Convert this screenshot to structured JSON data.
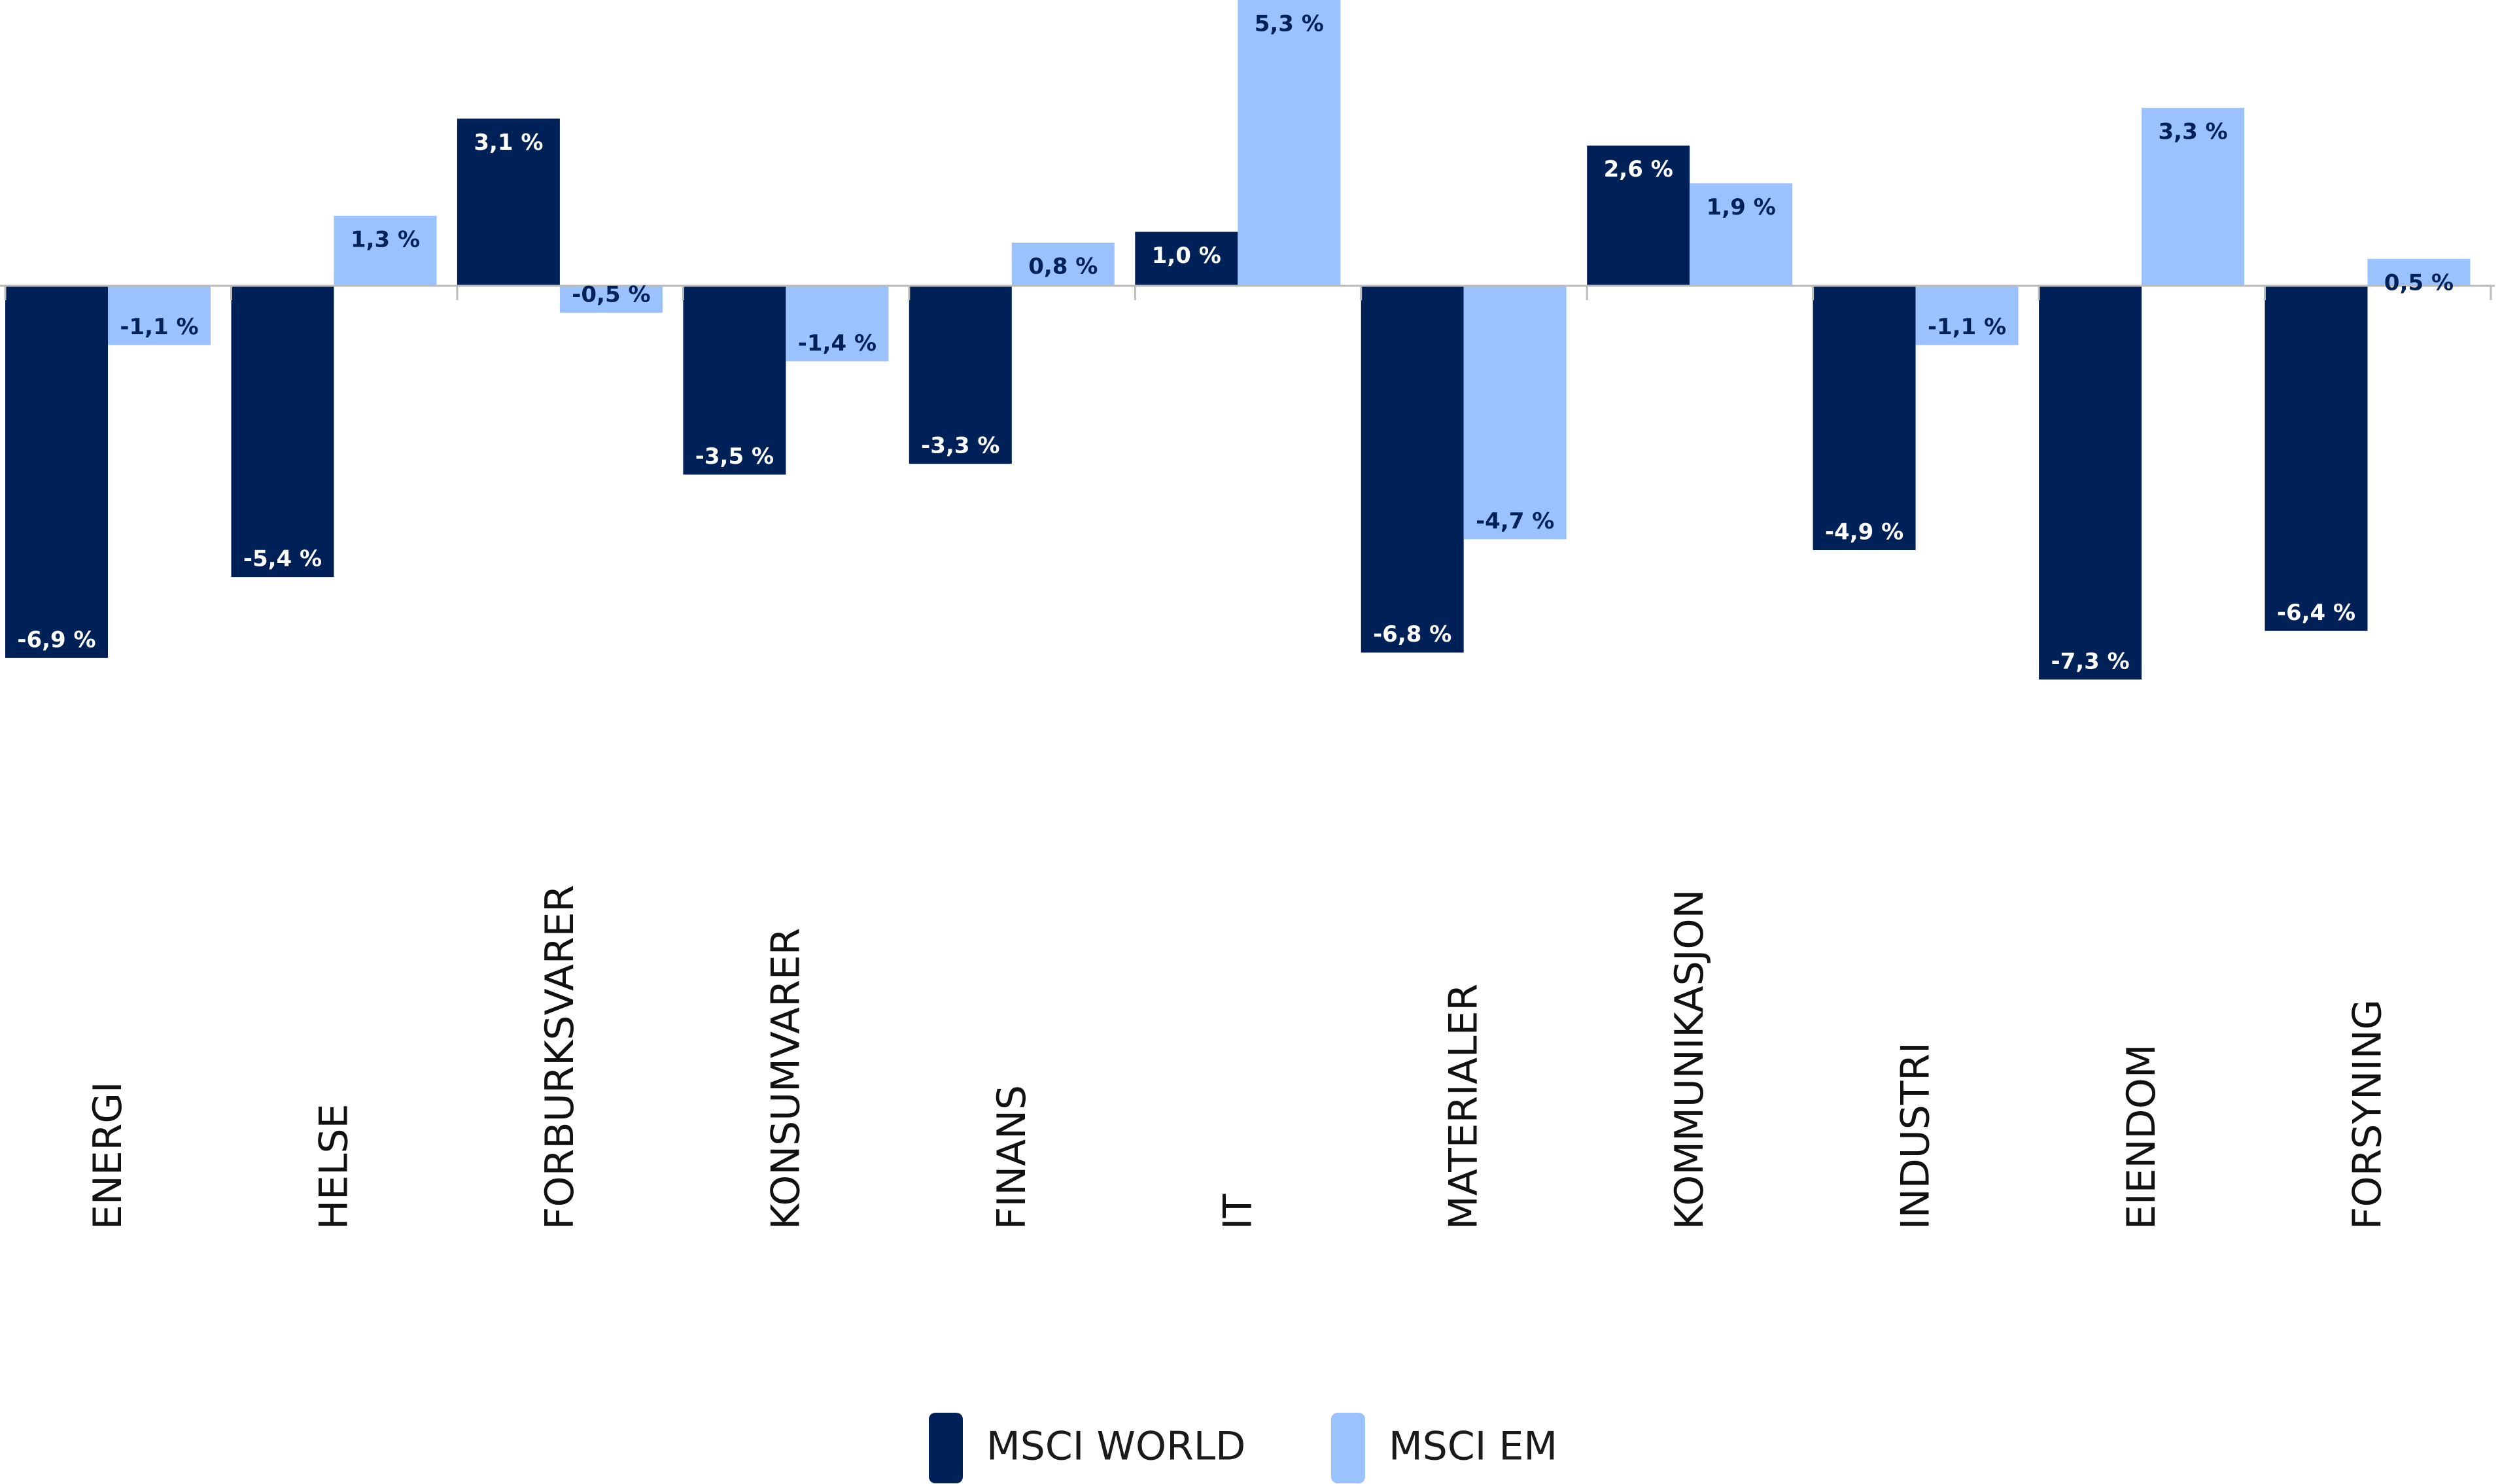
{
  "chart_data": {
    "type": "bar",
    "categories": [
      "ENERGI",
      "HELSE",
      "FORBURKSVARER",
      "KONSUMVARER",
      "FINANS",
      "IT",
      "MATERIALER",
      "KOMMUNIKASJON",
      "INDUSTRI",
      "EIENDOM",
      "FORSYNING"
    ],
    "series": [
      {
        "name": "MSCI WORLD",
        "color": "#002157",
        "label_color": "#ffffff",
        "values": [
          -6.9,
          -5.4,
          3.1,
          -3.5,
          -3.3,
          1.0,
          -6.8,
          2.6,
          -4.9,
          -7.3,
          -6.4
        ],
        "labels": [
          "-6,9 %",
          "-5,4 %",
          "3,1 %",
          "-3,5 %",
          "-3,3 %",
          "1,0 %",
          "-6,8 %",
          "2,6 %",
          "-4,9 %",
          "-7,3 %",
          "-6,4 %"
        ]
      },
      {
        "name": "MSCI EM",
        "color": "#99c2ff",
        "label_color": "#002157",
        "values": [
          -1.1,
          1.3,
          -0.5,
          -1.4,
          0.8,
          5.3,
          -4.7,
          1.9,
          -1.1,
          3.3,
          0.5
        ],
        "labels": [
          "-1,1 %",
          "1,3 %",
          "-0,5 %",
          "-1,4 %",
          "0,8 %",
          "5,3 %",
          "-4,7 %",
          "1,9 %",
          "-1,1 %",
          "3,3 %",
          "0,5 %"
        ]
      }
    ],
    "title": "",
    "xlabel": "",
    "ylabel": "",
    "ylim": [
      -7.3,
      5.3
    ],
    "grid": false,
    "legend": "bottom-center",
    "axis_color": "#bbbbbb"
  }
}
